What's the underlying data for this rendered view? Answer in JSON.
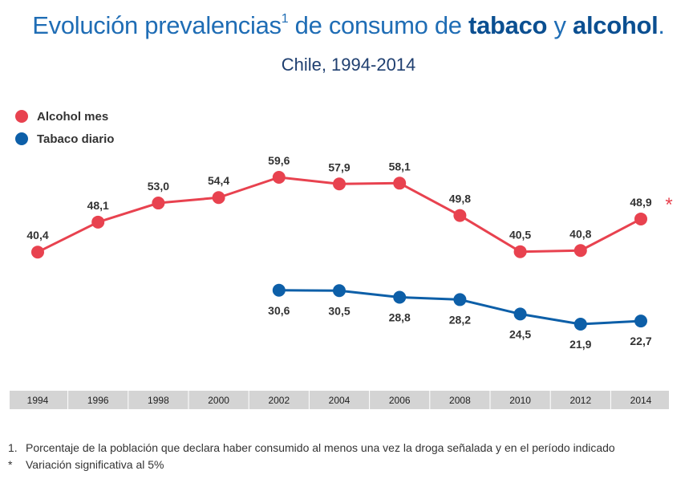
{
  "title": {
    "part1": "Evolución prevalencias",
    "sup": "1",
    "part2": " de consumo de ",
    "bold1": "tabaco",
    "part3": " y ",
    "bold2": "alcohol",
    "part4": "."
  },
  "subtitle": "Chile, 1994-2014",
  "colors": {
    "alcohol": "#e8424f",
    "tabaco": "#0d5fa8",
    "axis_band": "#d4d4d4"
  },
  "chart_data": {
    "type": "line",
    "title": "Evolución prevalencias de consumo de tabaco y alcohol",
    "subtitle": "Chile, 1994-2014",
    "categories": [
      "1994",
      "1996",
      "1998",
      "2000",
      "2002",
      "2004",
      "2006",
      "2008",
      "2010",
      "2012",
      "2014"
    ],
    "series": [
      {
        "name": "Alcohol mes",
        "values": [
          40.4,
          48.1,
          53.0,
          54.4,
          59.6,
          57.9,
          58.1,
          49.8,
          40.5,
          40.8,
          48.9
        ],
        "labels": [
          "40,4",
          "48,1",
          "53,0",
          "54,4",
          "59,6",
          "57,9",
          "58,1",
          "49,8",
          "40,5",
          "40,8",
          "48,9"
        ]
      },
      {
        "name": "Tabaco diario",
        "values": [
          null,
          null,
          null,
          null,
          30.6,
          30.5,
          28.8,
          28.2,
          24.5,
          21.9,
          22.7
        ],
        "labels": [
          null,
          null,
          null,
          null,
          "30,6",
          "30,5",
          "28,8",
          "28,2",
          "24,5",
          "21,9",
          "22,7"
        ]
      }
    ],
    "annotations": [
      {
        "series": "Alcohol mes",
        "category": "2014",
        "text": "*"
      }
    ],
    "legend": "top-left",
    "xlabel": "",
    "ylabel": "",
    "grid": false
  },
  "footnotes": [
    {
      "mark": "1.",
      "text": "Porcentaje de la población que declara haber consumido al menos una vez la droga señalada y en el período indicado"
    },
    {
      "mark": "*",
      "text": "Variación significativa al 5%"
    }
  ]
}
